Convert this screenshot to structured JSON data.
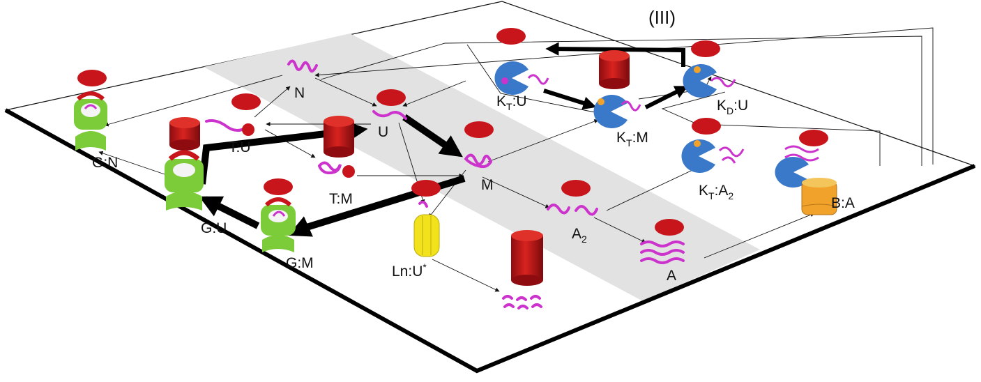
{
  "panel_label": "(III)",
  "nodes": [
    {
      "id": "N",
      "main": "N",
      "sub": "",
      "tail": ""
    },
    {
      "id": "U",
      "main": "U",
      "sub": "",
      "tail": ""
    },
    {
      "id": "M",
      "main": "M",
      "sub": "",
      "tail": ""
    },
    {
      "id": "A2",
      "main": "A",
      "sub": "2",
      "tail": ""
    },
    {
      "id": "A",
      "main": "A",
      "sub": "",
      "tail": ""
    },
    {
      "id": "TU",
      "main": "T:U",
      "sub": "",
      "tail": ""
    },
    {
      "id": "TM",
      "main": "T:M",
      "sub": "",
      "tail": ""
    },
    {
      "id": "GN",
      "main": "G:N",
      "sub": "",
      "tail": ""
    },
    {
      "id": "GU",
      "main": "G:U",
      "sub": "",
      "tail": ""
    },
    {
      "id": "GM",
      "main": "G:M",
      "sub": "",
      "tail": ""
    },
    {
      "id": "LnU",
      "main": "Ln:U",
      "sub": "",
      "tail": "*"
    },
    {
      "id": "KTU",
      "main": "K",
      "sub": "T",
      "tail": ":U"
    },
    {
      "id": "KTM",
      "main": "K",
      "sub": "T",
      "tail": ":M"
    },
    {
      "id": "KDU",
      "main": "K",
      "sub": "D",
      "tail": ":U"
    },
    {
      "id": "KTA2",
      "main": "K",
      "sub": "T",
      "tail": ":A"
    },
    {
      "id": "BA",
      "main": "B:A",
      "sub": "",
      "tail": ""
    }
  ],
  "kta2_tail_sub": "2",
  "colors": {
    "red": "#c8141b",
    "magenta": "#cc33cc",
    "green": "#7ccc3a",
    "blue": "#3a78c9",
    "yellow": "#f2e21c",
    "orange": "#f0a22a",
    "lane": "#e2e2e2"
  }
}
